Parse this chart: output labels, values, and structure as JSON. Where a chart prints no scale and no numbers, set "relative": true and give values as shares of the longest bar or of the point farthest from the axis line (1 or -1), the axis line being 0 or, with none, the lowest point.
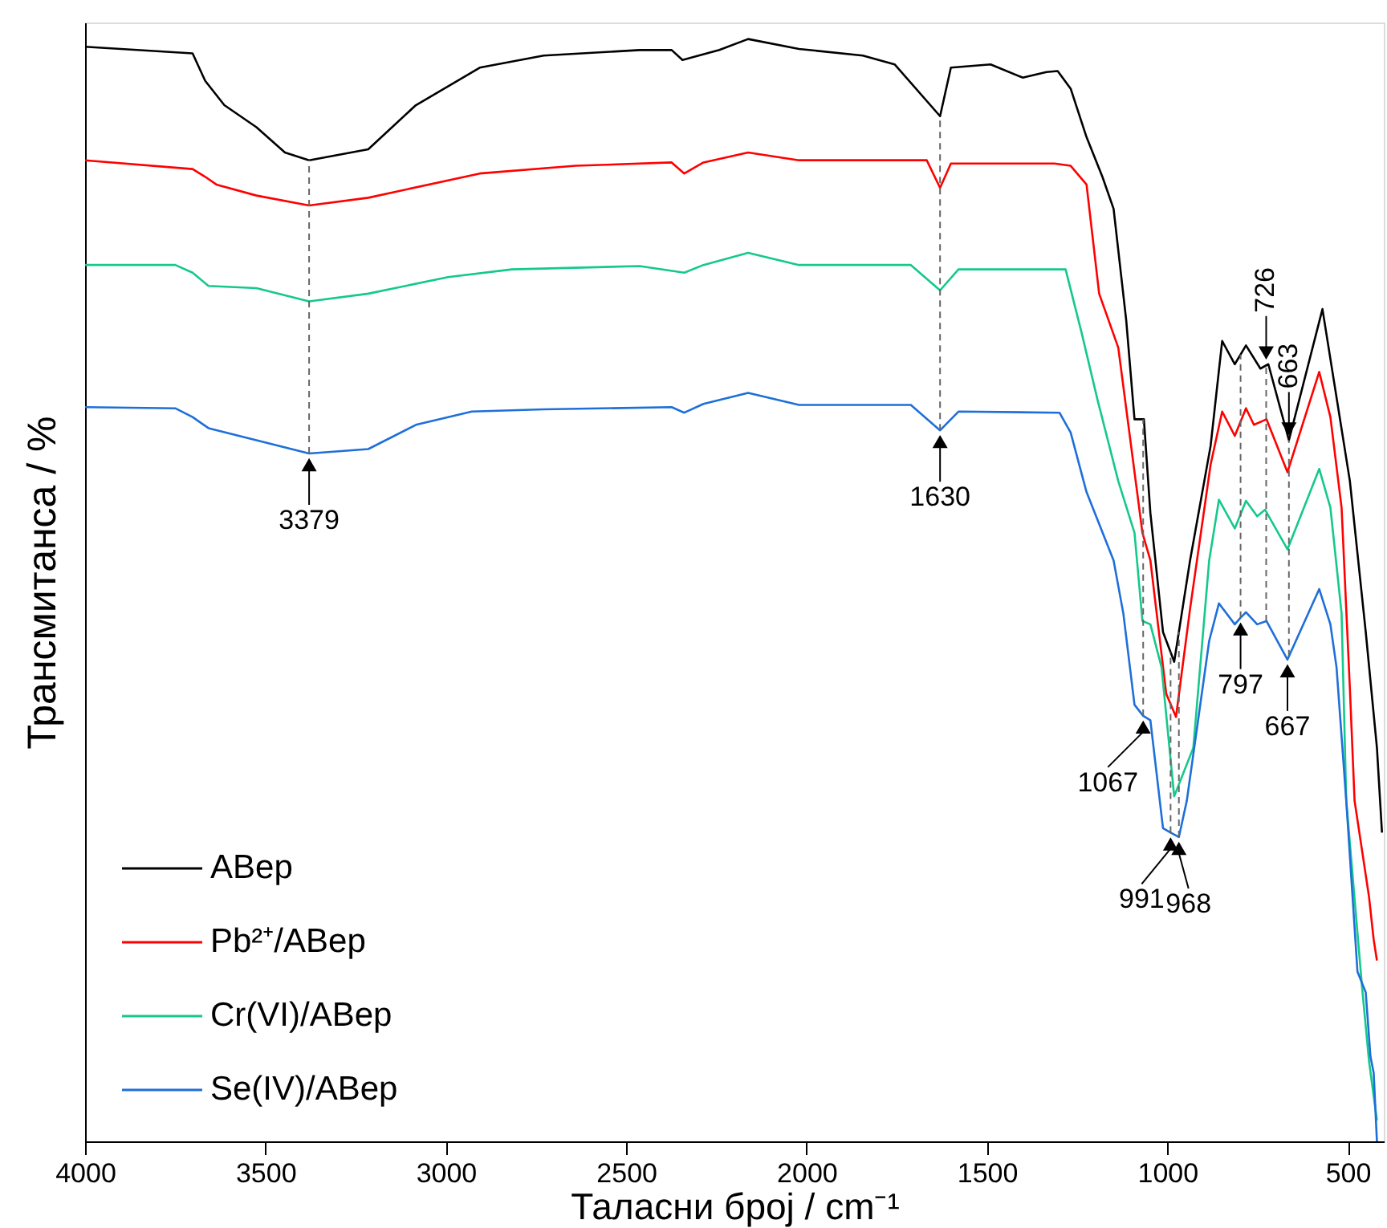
{
  "chart_data": {
    "type": "line",
    "xlabel": "Таласни број / cm⁻¹",
    "ylabel": "Трансмитанса / %",
    "xlim": [
      4000,
      400
    ],
    "xticks": [
      4000,
      3500,
      3000,
      2500,
      2000,
      1500,
      1000,
      500
    ],
    "relative": true,
    "legend": "bottom left",
    "line_style": "solid",
    "ref_lines": [
      {
        "axis": "x",
        "value": 3379,
        "color": "#666666",
        "line_style": "dashed"
      },
      {
        "axis": "x",
        "value": 1630,
        "color": "#666666",
        "line_style": "dashed"
      },
      {
        "axis": "x",
        "value": 1067,
        "color": "#666666",
        "line_style": "dashed"
      },
      {
        "axis": "x",
        "value": 991,
        "color": "#666666",
        "line_style": "dashed"
      },
      {
        "axis": "x",
        "value": 968,
        "color": "#666666",
        "line_style": "dashed"
      },
      {
        "axis": "x",
        "value": 797,
        "color": "#666666",
        "line_style": "dashed"
      },
      {
        "axis": "x",
        "value": 726,
        "color": "#666666",
        "line_style": "dashed"
      },
      {
        "axis": "x",
        "value": 663,
        "color": "#666666",
        "line_style": "dashed"
      }
    ],
    "series": [
      {
        "name": "ABep",
        "color": "#000000",
        "x": [
          4000,
          3702,
          3667,
          3614,
          3525,
          3446,
          3379,
          3215,
          3083,
          2906,
          2729,
          2463,
          2374,
          2344,
          2242,
          2162,
          2021,
          1844,
          1756,
          1630,
          1600,
          1490,
          1401,
          1335,
          1304,
          1268,
          1224,
          1180,
          1149,
          1114,
          1091,
          1065,
          1047,
          1012,
          981,
          937,
          880,
          848,
          813,
          782,
          742,
          720,
          663,
          570,
          494,
          450,
          419,
          405
        ],
        "values": [
          0.993,
          0.987,
          0.962,
          0.94,
          0.92,
          0.897,
          0.89,
          0.9,
          0.94,
          0.974,
          0.985,
          0.99,
          0.99,
          0.981,
          0.99,
          1.0,
          0.991,
          0.985,
          0.977,
          0.93,
          0.974,
          0.977,
          0.965,
          0.97,
          0.971,
          0.955,
          0.911,
          0.875,
          0.846,
          0.745,
          0.655,
          0.655,
          0.57,
          0.462,
          0.435,
          0.527,
          0.631,
          0.726,
          0.705,
          0.722,
          0.701,
          0.705,
          0.636,
          0.755,
          0.599,
          0.462,
          0.357,
          0.28
        ]
      },
      {
        "name": "Pb²⁺/ABep",
        "color": "#ff0000",
        "x": [
          4000,
          3702,
          3667,
          3636,
          3525,
          3379,
          3215,
          2906,
          2640,
          2374,
          2339,
          2286,
          2162,
          2021,
          1667,
          1630,
          1600,
          1313,
          1268,
          1224,
          1189,
          1136,
          1069,
          1047,
          1003,
          976,
          937,
          880,
          848,
          813,
          782,
          760,
          725,
          667,
          579,
          548,
          517,
          494,
          481,
          441,
          428,
          419
        ],
        "values": [
          0.89,
          0.882,
          0.875,
          0.868,
          0.858,
          0.849,
          0.856,
          0.878,
          0.885,
          0.888,
          0.878,
          0.888,
          0.897,
          0.89,
          0.89,
          0.865,
          0.887,
          0.887,
          0.885,
          0.868,
          0.769,
          0.72,
          0.552,
          0.527,
          0.406,
          0.385,
          0.483,
          0.614,
          0.662,
          0.64,
          0.665,
          0.65,
          0.655,
          0.607,
          0.698,
          0.657,
          0.575,
          0.411,
          0.309,
          0.222,
          0.183,
          0.164
        ]
      },
      {
        "name": "Cr(VI)/ABep",
        "color": "#14c98a",
        "x": [
          4000,
          3750,
          3702,
          3658,
          3525,
          3379,
          3215,
          2994,
          2817,
          2463,
          2339,
          2286,
          2162,
          2021,
          1711,
          1630,
          1579,
          1282,
          1238,
          1193,
          1136,
          1091,
          1069,
          1047,
          1016,
          981,
          928,
          884,
          857,
          813,
          782,
          751,
          729,
          667,
          579,
          548,
          517,
          504,
          460,
          441,
          419
        ],
        "values": [
          0.795,
          0.795,
          0.788,
          0.776,
          0.774,
          0.762,
          0.769,
          0.784,
          0.791,
          0.794,
          0.788,
          0.795,
          0.806,
          0.795,
          0.795,
          0.772,
          0.791,
          0.791,
          0.734,
          0.672,
          0.599,
          0.552,
          0.472,
          0.469,
          0.43,
          0.313,
          0.357,
          0.527,
          0.582,
          0.556,
          0.581,
          0.567,
          0.573,
          0.537,
          0.61,
          0.575,
          0.479,
          0.309,
          0.139,
          0.073,
          0.019
        ]
      },
      {
        "name": "Se(IV)/ABep",
        "color": "#1e6fd9",
        "x": [
          4000,
          3750,
          3702,
          3658,
          3525,
          3379,
          3215,
          3083,
          2928,
          2729,
          2374,
          2339,
          2286,
          2162,
          2021,
          1711,
          1630,
          1579,
          1299,
          1268,
          1224,
          1149,
          1122,
          1091,
          1067,
          1047,
          1012,
          991,
          968,
          946,
          884,
          857,
          813,
          797,
          782,
          751,
          725,
          667,
          579,
          548,
          531,
          504,
          473,
          450,
          437,
          428,
          419
        ],
        "values": [
          0.666,
          0.665,
          0.657,
          0.647,
          0.636,
          0.624,
          0.628,
          0.65,
          0.662,
          0.664,
          0.666,
          0.661,
          0.669,
          0.679,
          0.668,
          0.668,
          0.645,
          0.662,
          0.661,
          0.643,
          0.589,
          0.527,
          0.479,
          0.396,
          0.386,
          0.382,
          0.284,
          0.28,
          0.276,
          0.309,
          0.454,
          0.488,
          0.469,
          0.475,
          0.48,
          0.469,
          0.472,
          0.437,
          0.501,
          0.469,
          0.43,
          0.309,
          0.154,
          0.135,
          0.077,
          0.062,
          0.0
        ]
      }
    ],
    "annotations": [
      {
        "text": "3379",
        "x": 3379,
        "y": 0.624
      },
      {
        "text": "1630",
        "x": 1630,
        "y": 0.645
      },
      {
        "text": "726",
        "x": 726,
        "y": 0.705
      },
      {
        "text": "663",
        "x": 663,
        "y": 0.636
      },
      {
        "text": "797",
        "x": 797,
        "y": 0.475
      },
      {
        "text": "667",
        "x": 667,
        "y": 0.437
      },
      {
        "text": "1067",
        "x": 1067,
        "y": 0.386
      },
      {
        "text": "991",
        "x": 991,
        "y": 0.28
      },
      {
        "text": "968",
        "x": 968,
        "y": 0.276
      }
    ]
  }
}
